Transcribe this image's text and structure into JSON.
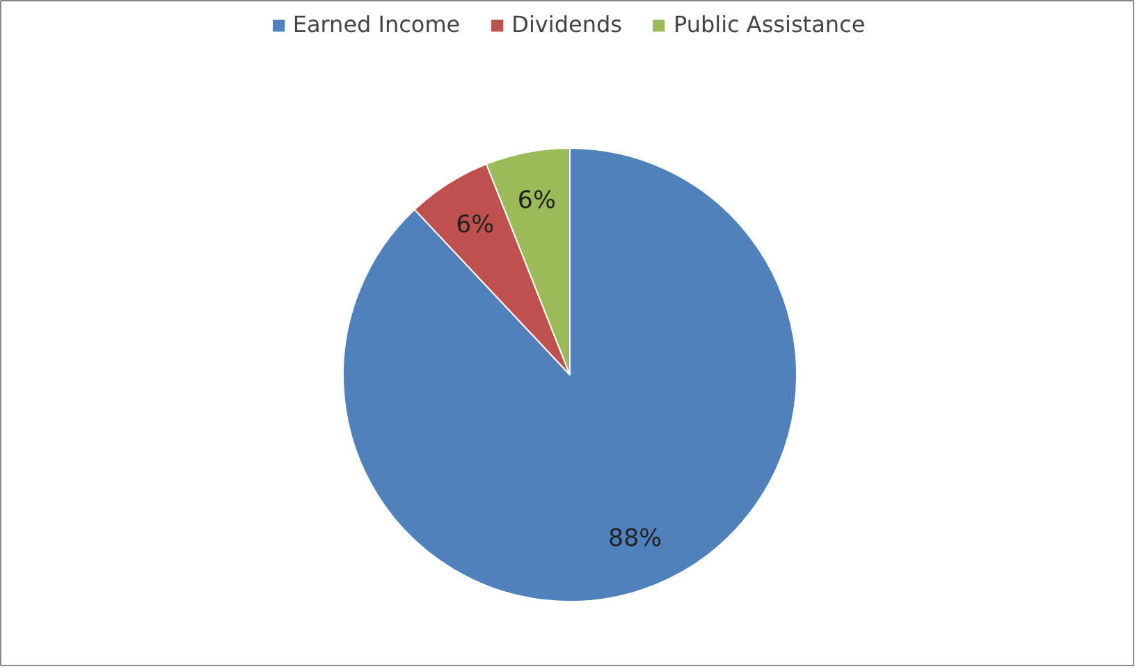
{
  "chart_data": {
    "type": "pie",
    "categories": [
      "Earned Income",
      "Dividends",
      "Public Assistance"
    ],
    "values": [
      88,
      6,
      6
    ],
    "colors": [
      "#4f81bd",
      "#c0504d",
      "#9bbb59"
    ],
    "value_labels": [
      "88%",
      "6%",
      "6%"
    ],
    "legend": "top"
  }
}
